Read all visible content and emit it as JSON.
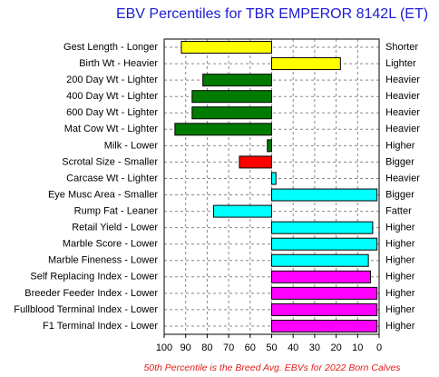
{
  "chart_data": {
    "type": "bar",
    "orientation": "horizontal",
    "title": "EBV Percentiles for TBR EMPEROR 8142L (ET)",
    "footnote": "50th Percentile is the Breed Avg. EBVs for 2022 Born Calves",
    "categories": [
      "Gest Length - Longer",
      "Birth Wt - Heavier",
      "200 Day Wt - Lighter",
      "400 Day Wt - Lighter",
      "600 Day Wt - Lighter",
      "Mat Cow Wt - Lighter",
      "Milk - Lower",
      "Scrotal Size - Smaller",
      "Carcase Wt - Lighter",
      "Eye Musc Area - Smaller",
      "Rump Fat - Leaner",
      "Retail Yield - Lower",
      "Marble Score - Lower",
      "Marble Fineness - Lower",
      "Self Replacing Index - Lower",
      "Breeder Feeder Index - Lower",
      "Fullblood Terminal Index - Lower",
      "F1 Terminal Index - Lower"
    ],
    "right_labels": [
      "Shorter",
      "Lighter",
      "Heavier",
      "Heavier",
      "Heavier",
      "Heavier",
      "Higher",
      "Bigger",
      "Heavier",
      "Bigger",
      "Fatter",
      "Higher",
      "Higher",
      "Higher",
      "Higher",
      "Higher",
      "Higher",
      "Higher"
    ],
    "values": [
      92,
      18,
      82,
      87,
      87,
      95,
      52,
      65,
      48,
      1,
      77,
      3,
      1,
      5,
      4,
      1,
      1,
      1
    ],
    "colors": [
      "#ffff00",
      "#ffff00",
      "#007a00",
      "#007a00",
      "#007a00",
      "#007a00",
      "#007a00",
      "#ff0000",
      "#00ffff",
      "#00ffff",
      "#00ffff",
      "#00ffff",
      "#00ffff",
      "#00ffff",
      "#ff00ff",
      "#ff00ff",
      "#ff00ff",
      "#ff00ff"
    ],
    "base": 50,
    "xlim": [
      100,
      0
    ],
    "xticks": [
      100,
      90,
      80,
      70,
      60,
      50,
      40,
      30,
      20,
      10,
      0
    ],
    "grid": true
  }
}
